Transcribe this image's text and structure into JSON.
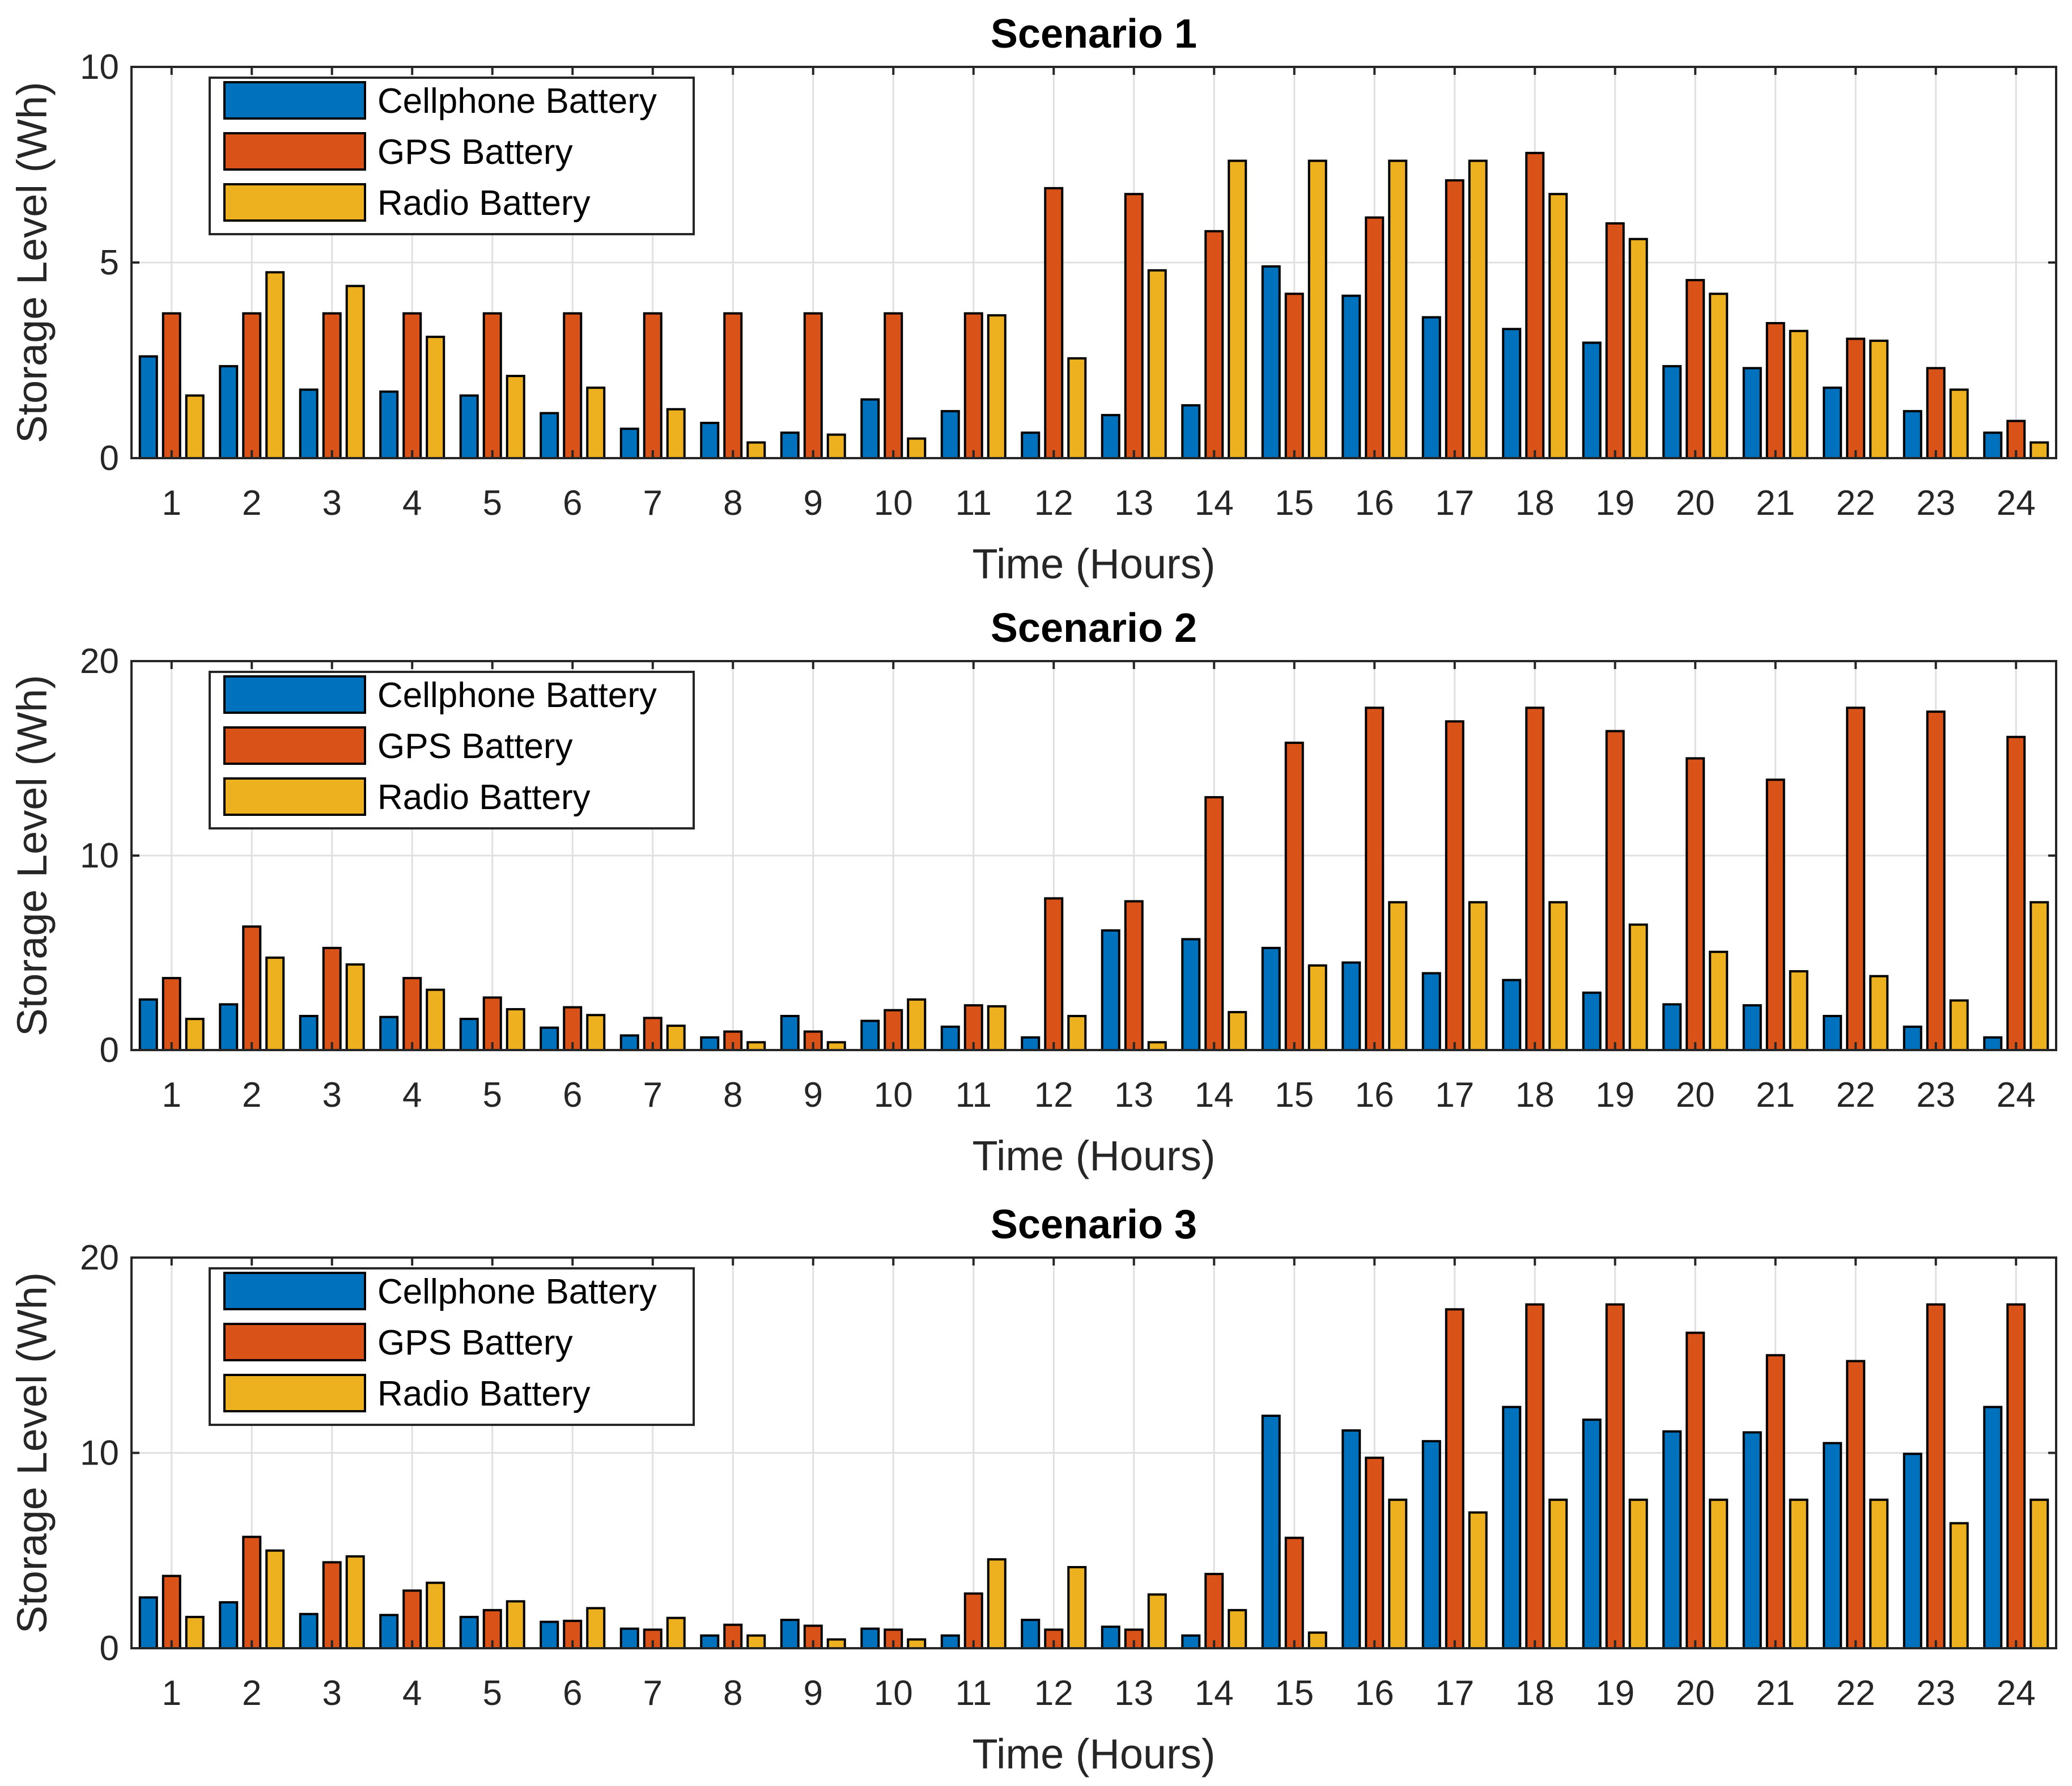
{
  "colors": {
    "cellphone": "#0072BD",
    "gps": "#D95319",
    "radio": "#EDB120"
  },
  "chart_data": [
    {
      "type": "bar",
      "title": "Scenario 1",
      "xlabel": "Time (Hours)",
      "ylabel": "Storage Level (Wh)",
      "ylim": [
        0,
        10
      ],
      "yticks": [
        0,
        5,
        10
      ],
      "grid": true,
      "legend_position": "top-left",
      "categories": [
        "1",
        "2",
        "3",
        "4",
        "5",
        "6",
        "7",
        "8",
        "9",
        "10",
        "11",
        "12",
        "13",
        "14",
        "15",
        "16",
        "17",
        "18",
        "19",
        "20",
        "21",
        "22",
        "23",
        "24"
      ],
      "series": [
        {
          "name": "Cellphone Battery",
          "color_key": "cellphone",
          "values": [
            2.6,
            2.35,
            1.75,
            1.7,
            1.6,
            1.15,
            0.75,
            0.9,
            0.65,
            1.5,
            1.2,
            0.65,
            1.1,
            1.35,
            4.9,
            4.15,
            3.6,
            3.3,
            2.95,
            2.35,
            2.3,
            1.8,
            1.2,
            0.65
          ]
        },
        {
          "name": "GPS Battery",
          "color_key": "gps",
          "values": [
            3.7,
            3.7,
            3.7,
            3.7,
            3.7,
            3.7,
            3.7,
            3.7,
            3.7,
            3.7,
            3.7,
            6.9,
            6.75,
            5.8,
            4.2,
            6.15,
            7.1,
            7.8,
            6.0,
            4.55,
            3.45,
            3.05,
            2.3,
            0.95
          ]
        },
        {
          "name": "Radio Battery",
          "color_key": "radio",
          "values": [
            1.6,
            4.75,
            4.4,
            3.1,
            2.1,
            1.8,
            1.25,
            0.4,
            0.6,
            0.5,
            3.65,
            2.55,
            4.8,
            7.6,
            7.6,
            7.6,
            7.6,
            6.75,
            5.6,
            4.2,
            3.25,
            3.0,
            1.75,
            0.4
          ]
        }
      ]
    },
    {
      "type": "bar",
      "title": "Scenario 2",
      "xlabel": "Time (Hours)",
      "ylabel": "Storage Level (Wh)",
      "ylim": [
        0,
        20
      ],
      "yticks": [
        0,
        10,
        20
      ],
      "grid": true,
      "legend_position": "top-left",
      "categories": [
        "1",
        "2",
        "3",
        "4",
        "5",
        "6",
        "7",
        "8",
        "9",
        "10",
        "11",
        "12",
        "13",
        "14",
        "15",
        "16",
        "17",
        "18",
        "19",
        "20",
        "21",
        "22",
        "23",
        "24"
      ],
      "series": [
        {
          "name": "Cellphone Battery",
          "color_key": "cellphone",
          "values": [
            2.6,
            2.35,
            1.75,
            1.7,
            1.6,
            1.15,
            0.75,
            0.65,
            1.75,
            1.5,
            1.2,
            0.65,
            6.15,
            5.7,
            5.25,
            4.5,
            3.95,
            3.6,
            2.95,
            2.35,
            2.3,
            1.75,
            1.2,
            0.65
          ]
        },
        {
          "name": "GPS Battery",
          "color_key": "gps",
          "values": [
            3.7,
            6.35,
            5.25,
            3.7,
            2.7,
            2.2,
            1.65,
            0.95,
            0.95,
            2.05,
            2.3,
            7.8,
            7.65,
            13.0,
            15.8,
            17.6,
            16.9,
            17.6,
            16.4,
            15.0,
            13.9,
            17.6,
            17.4,
            16.1
          ]
        },
        {
          "name": "Radio Battery",
          "color_key": "radio",
          "values": [
            1.6,
            4.75,
            4.4,
            3.1,
            2.1,
            1.8,
            1.25,
            0.4,
            0.4,
            2.6,
            2.25,
            1.75,
            0.4,
            1.95,
            4.35,
            7.6,
            7.6,
            7.6,
            6.45,
            5.05,
            4.05,
            3.8,
            2.55,
            7.6
          ]
        }
      ]
    },
    {
      "type": "bar",
      "title": "Scenario 3",
      "xlabel": "Time (Hours)",
      "ylabel": "Storage Level (Wh)",
      "ylim": [
        0,
        20
      ],
      "yticks": [
        0,
        10,
        20
      ],
      "grid": true,
      "legend_position": "top-left",
      "categories": [
        "1",
        "2",
        "3",
        "4",
        "5",
        "6",
        "7",
        "8",
        "9",
        "10",
        "11",
        "12",
        "13",
        "14",
        "15",
        "16",
        "17",
        "18",
        "19",
        "20",
        "21",
        "22",
        "23",
        "24"
      ],
      "series": [
        {
          "name": "Cellphone Battery",
          "color_key": "cellphone",
          "values": [
            2.6,
            2.35,
            1.75,
            1.7,
            1.6,
            1.35,
            1.0,
            0.65,
            1.45,
            1.0,
            0.65,
            1.45,
            1.1,
            0.65,
            11.9,
            11.15,
            10.6,
            12.35,
            11.7,
            11.1,
            11.05,
            10.5,
            9.95,
            12.35
          ]
        },
        {
          "name": "GPS Battery",
          "color_key": "gps",
          "values": [
            3.7,
            5.7,
            4.4,
            2.95,
            1.95,
            1.4,
            0.95,
            1.2,
            1.15,
            0.95,
            2.8,
            0.95,
            0.95,
            3.8,
            5.65,
            9.75,
            17.35,
            17.6,
            17.6,
            16.15,
            15.0,
            14.7,
            17.6,
            17.6
          ]
        },
        {
          "name": "Radio Battery",
          "color_key": "radio",
          "values": [
            1.6,
            5.0,
            4.7,
            3.35,
            2.4,
            2.05,
            1.55,
            0.65,
            0.45,
            0.45,
            4.55,
            4.15,
            2.75,
            1.95,
            0.8,
            7.6,
            6.95,
            7.6,
            7.6,
            7.6,
            7.6,
            7.6,
            6.4,
            7.6
          ]
        }
      ]
    }
  ]
}
